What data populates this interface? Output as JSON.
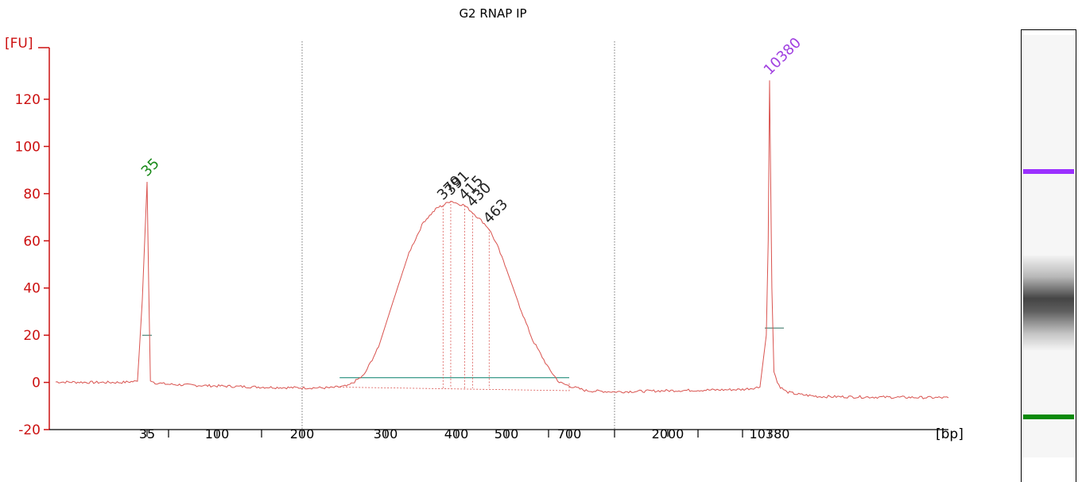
{
  "chart_data": {
    "type": "line",
    "title": "G2 RNAP IP",
    "ylabel": "[FU]",
    "xlabel": "[bp]",
    "ylim": [
      -20,
      140
    ],
    "y_ticks": [
      -20,
      0,
      20,
      40,
      60,
      80,
      100,
      120
    ],
    "x_tick_labels": [
      "35",
      "100",
      "200",
      "300",
      "400",
      "500",
      "700",
      "2000",
      "10380"
    ],
    "x_minor_tick_labels_bp": [
      50,
      150,
      600,
      1000,
      3000,
      5000
    ],
    "region_boundaries_bp": [
      200,
      1000
    ],
    "x_axis_scale": "non-linear (ladder calibrated, electropherogram)",
    "series": [
      {
        "color": "#d9534f",
        "x": [
          20,
          25,
          30,
          33,
          34,
          35,
          36,
          37,
          40,
          45,
          50,
          70,
          100,
          150,
          200,
          230,
          250,
          270,
          290,
          310,
          330,
          350,
          370,
          379,
          391,
          400,
          415,
          430,
          450,
          463,
          480,
          500,
          530,
          560,
          600,
          650,
          700,
          800,
          1000,
          2000,
          5000,
          8000,
          9500,
          10000,
          10380,
          10700,
          11000,
          11500,
          12000,
          13000,
          15000,
          20000,
          30000
        ],
        "y": [
          0.2,
          0,
          0,
          0.5,
          35,
          85,
          40,
          1,
          -0.2,
          -0.5,
          -0.8,
          -1.2,
          -1.5,
          -2,
          -2.3,
          -2.3,
          -1.5,
          3,
          15,
          35,
          55,
          68,
          74,
          75,
          77,
          76,
          75,
          72,
          68,
          65,
          58,
          48,
          32,
          18,
          6,
          0,
          -1.5,
          -3.5,
          -4,
          -3.5,
          -3,
          -2,
          20,
          60,
          128,
          40,
          5,
          0,
          -2,
          -4,
          -5,
          -6,
          -6.5
        ]
      }
    ],
    "peaks": [
      {
        "bp": "35",
        "fu": 85,
        "color": "#1a8a1a",
        "role": "lower marker"
      },
      {
        "bp": "379",
        "fu": 75,
        "color": "#222222"
      },
      {
        "bp": "391",
        "fu": 77,
        "color": "#222222"
      },
      {
        "bp": "415",
        "fu": 75,
        "color": "#222222"
      },
      {
        "bp": "430",
        "fu": 72,
        "color": "#222222"
      },
      {
        "bp": "463",
        "fu": 65,
        "color": "#222222"
      },
      {
        "bp": "10380",
        "fu": 128,
        "color": "#a040e0",
        "role": "upper marker"
      }
    ],
    "smear_region": {
      "from_bp": 240,
      "to_bp": 700,
      "baseline_fu": 2,
      "color": "#3a9a8a"
    },
    "grid": false,
    "colors": {
      "axis": "#cc1111",
      "trace": "#d9534f",
      "text": "#000000"
    }
  },
  "gel_lane": {
    "upper_marker_color": "#9b30ff",
    "lower_marker_color": "#0a8a0a"
  }
}
